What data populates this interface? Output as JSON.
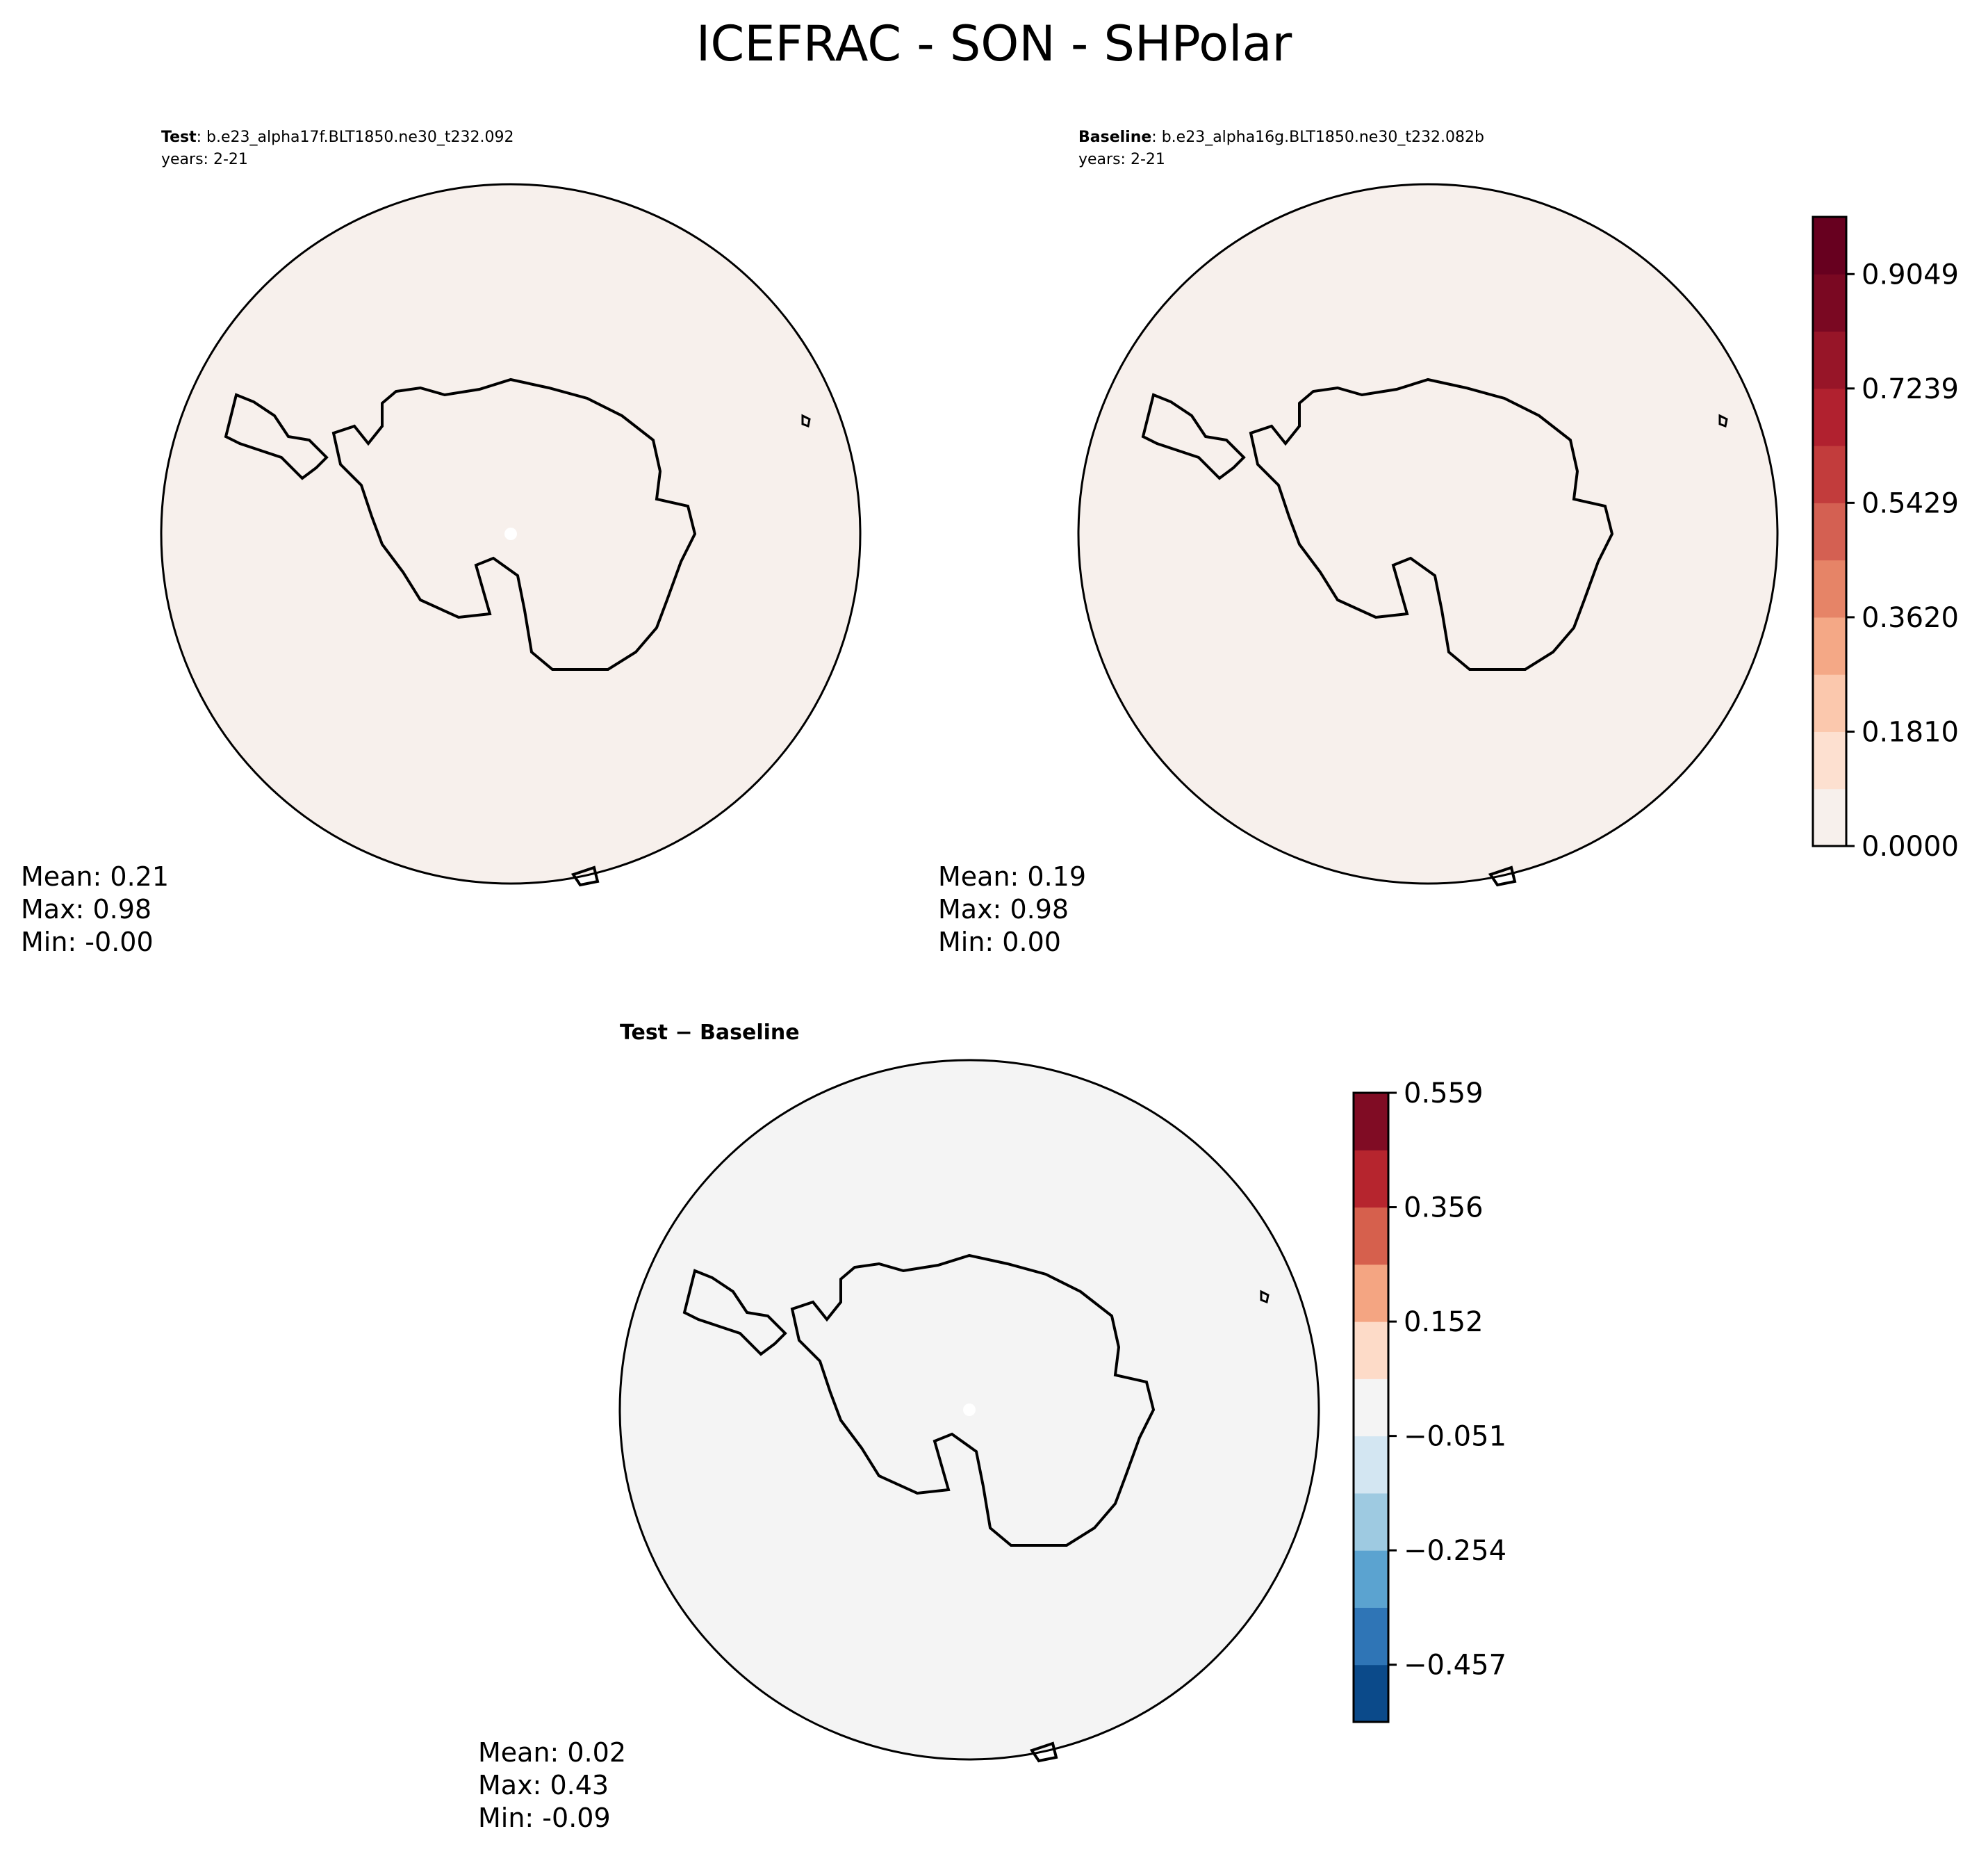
{
  "figure": {
    "title": "ICEFRAC - SON - SHPolar"
  },
  "panels": {
    "test": {
      "label": "Test",
      "case": ": b.e23_alpha17f.BLT1850.ne30_t232.092",
      "years": "years: 2-21",
      "stats": {
        "mean": "Mean:  0.21",
        "max": "Max:  0.98",
        "min": "Min: -0.00"
      }
    },
    "baseline": {
      "label": "Baseline",
      "case": ": b.e23_alpha16g.BLT1850.ne30_t232.082b",
      "years": "years: 2-21",
      "stats": {
        "mean": "Mean:  0.19",
        "max": "Max:  0.98",
        "min": "Min:  0.00"
      }
    },
    "difference": {
      "title": "Test − Baseline",
      "stats": {
        "mean": "Mean:  0.02",
        "max": "Max:  0.43",
        "min": "Min: -0.09"
      }
    }
  },
  "colorbars": {
    "fields": {
      "tick_labels": [
        "0.9049",
        "0.7239",
        "0.5429",
        "0.3620",
        "0.1810",
        "0.0000"
      ],
      "levels": 11,
      "colors": [
        "#f7f0ec",
        "#fde0d0",
        "#fbc8ad",
        "#f4a886",
        "#e68467",
        "#d46052",
        "#c23c3c",
        "#b1212f",
        "#971528",
        "#7a0822",
        "#67001f"
      ]
    },
    "difference": {
      "tick_labels": [
        "0.559",
        "0.356",
        "0.152",
        "−0.051",
        "−0.254",
        "−0.457"
      ],
      "levels": 11,
      "colors": [
        "#0b4a8a",
        "#2f75b6",
        "#5ba3d0",
        "#9ecae1",
        "#d3e6f2",
        "#f4f4f4",
        "#fddbc8",
        "#f4a582",
        "#d6604d",
        "#b6252e",
        "#800c24"
      ]
    }
  }
}
